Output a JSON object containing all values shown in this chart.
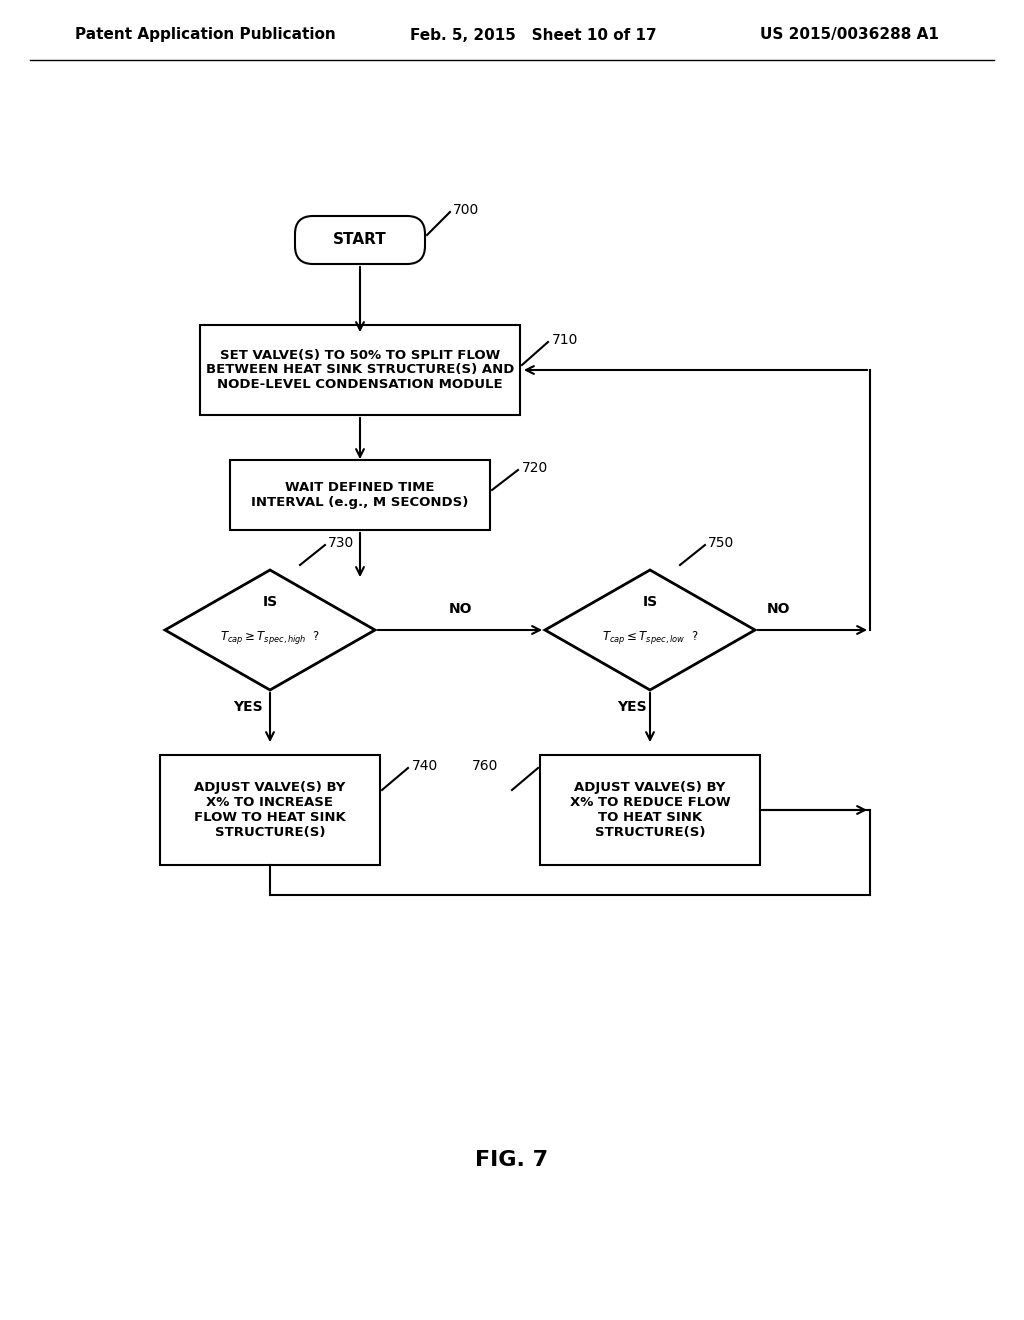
{
  "header_left": "Patent Application Publication",
  "header_mid": "Feb. 5, 2015   Sheet 10 of 17",
  "header_right": "US 2015/0036288 A1",
  "fig_label": "FIG. 7",
  "start_label": "START",
  "ref_700": "700",
  "box710_text": "SET VALVE(S) TO 50% TO SPLIT FLOW\nBETWEEN HEAT SINK STRUCTURE(S) AND\nNODE-LEVEL CONDENSATION MODULE",
  "ref_710": "710",
  "box720_text": "WAIT DEFINED TIME\nINTERVAL (e.g., M SECONDS)",
  "ref_720": "720",
  "ref_730": "730",
  "ref_750": "750",
  "box740_text": "ADJUST VALVE(S) BY\nX% TO INCREASE\nFLOW TO HEAT SINK\nSTRUCTURE(S)",
  "ref_740": "740",
  "box760_text": "ADJUST VALVE(S) BY\nX% TO REDUCE FLOW\nTO HEAT SINK\nSTRUCTURE(S)",
  "ref_760": "760",
  "yes_label": "YES",
  "no_label": "NO",
  "bg_color": "#ffffff",
  "box_edge_color": "#000000",
  "line_color": "#000000",
  "text_color": "#000000"
}
